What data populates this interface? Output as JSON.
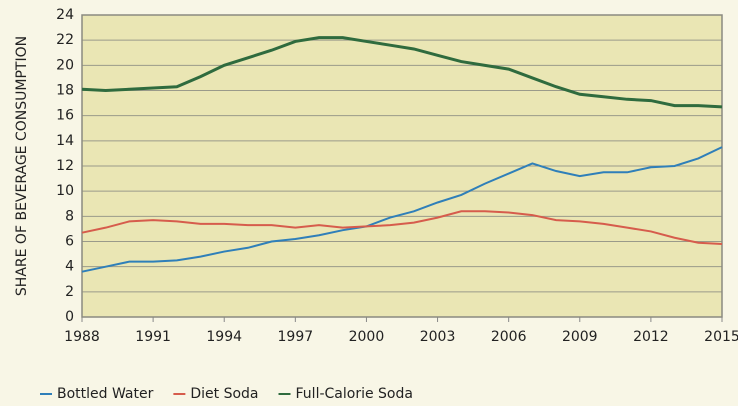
{
  "chart_data": {
    "type": "line",
    "y_label": "SHARE OF BEVERAGE CONSUMPTION",
    "x": [
      1988,
      1989,
      1990,
      1991,
      1992,
      1993,
      1994,
      1995,
      1996,
      1997,
      1998,
      1999,
      2000,
      2001,
      2002,
      2003,
      2004,
      2005,
      2006,
      2007,
      2008,
      2009,
      2010,
      2011,
      2012,
      2013,
      2014,
      2015
    ],
    "series": [
      {
        "name": "Bottled Water",
        "color": "#2f7fb9",
        "values": [
          3.6,
          4.0,
          4.4,
          4.4,
          4.5,
          4.8,
          5.2,
          5.5,
          6.0,
          6.2,
          6.5,
          6.9,
          7.2,
          7.9,
          8.4,
          9.1,
          9.7,
          10.6,
          11.4,
          12.2,
          11.6,
          11.2,
          11.5,
          11.5,
          11.9,
          12.0,
          12.6,
          13.5
        ]
      },
      {
        "name": "Diet Soda",
        "color": "#d65c4c",
        "values": [
          6.7,
          7.1,
          7.6,
          7.7,
          7.6,
          7.4,
          7.4,
          7.3,
          7.3,
          7.1,
          7.3,
          7.1,
          7.2,
          7.3,
          7.5,
          7.9,
          8.4,
          8.4,
          8.3,
          8.1,
          7.7,
          7.6,
          7.4,
          7.1,
          6.8,
          6.3,
          5.9,
          5.8
        ]
      },
      {
        "name": "Full-Calorie Soda",
        "color": "#2f6b3e",
        "values": [
          18.1,
          18.0,
          18.1,
          18.2,
          18.3,
          19.1,
          20.0,
          20.6,
          21.2,
          21.9,
          22.2,
          22.2,
          21.9,
          21.6,
          21.3,
          20.8,
          20.3,
          20.0,
          19.7,
          19.0,
          18.3,
          17.7,
          17.5,
          17.3,
          17.2,
          16.8,
          16.8,
          16.7
        ]
      }
    ],
    "xlim": [
      1988,
      2015
    ],
    "xticks": [
      1988,
      1991,
      1994,
      1997,
      2000,
      2003,
      2006,
      2009,
      2012,
      2015
    ],
    "ylim": [
      0,
      24
    ],
    "yticks": [
      0,
      2,
      4,
      6,
      8,
      10,
      12,
      14,
      16,
      18,
      20,
      22,
      24
    ],
    "grid": true,
    "legend": "bottom"
  }
}
